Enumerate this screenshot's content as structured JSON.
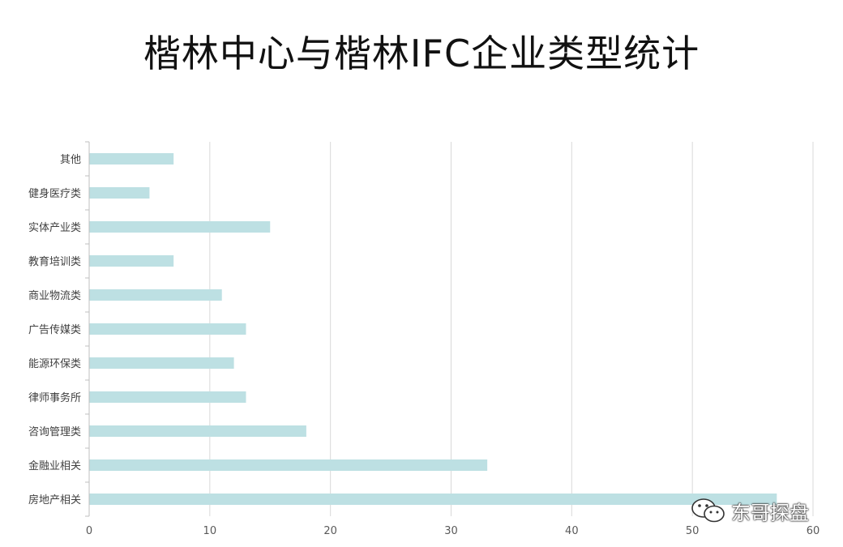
{
  "chart_data": {
    "type": "bar",
    "orientation": "horizontal",
    "title": "楷林中心与楷林IFC企业类型统计",
    "categories": [
      "其他",
      "健身医疗类",
      "实体产业类",
      "教育培训类",
      "商业物流类",
      "广告传媒类",
      "能源环保类",
      "律师事务所",
      "咨询管理类",
      "金融业相关",
      "房地产相关"
    ],
    "values": [
      7,
      5,
      15,
      7,
      11,
      13,
      12,
      13,
      18,
      33,
      57
    ],
    "xlim": [
      0,
      60
    ],
    "xticks": [
      0,
      10,
      20,
      30,
      40,
      50,
      60
    ],
    "grid": true,
    "bar_color": "#bde0e3",
    "grid_color": "#d9d9d9",
    "legend": "none"
  },
  "watermark": {
    "text": "东哥探盘",
    "icon": "wechat-icon"
  }
}
